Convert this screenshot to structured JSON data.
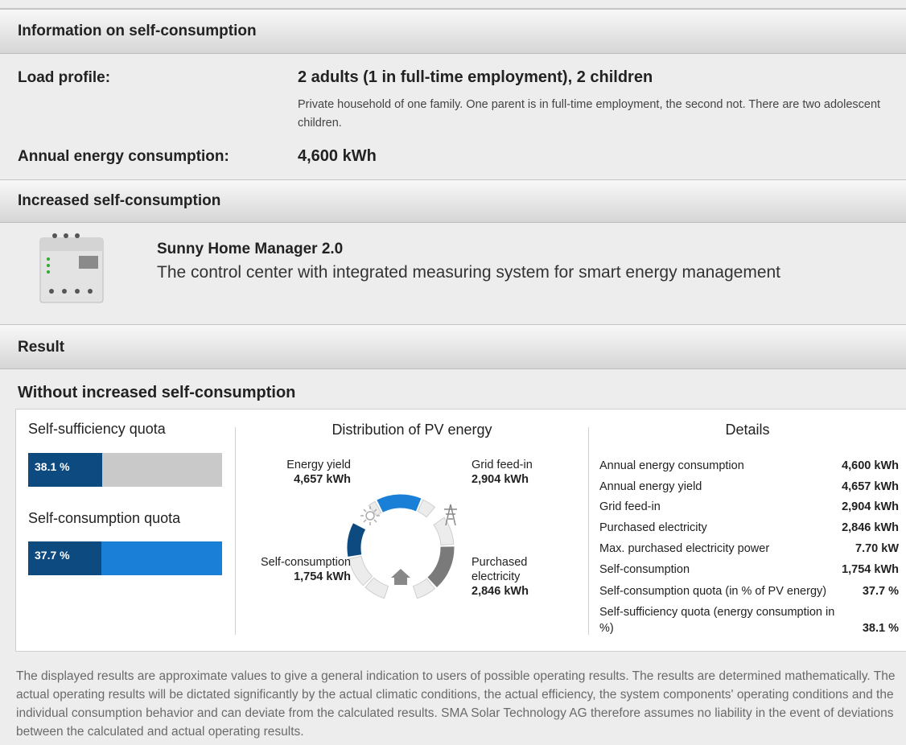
{
  "info": {
    "title": "Information on self-consumption",
    "load_profile_label": "Load profile:",
    "load_profile": "2 adults (1 in full-time employment), 2 children",
    "load_profile_description": "Private household of one family. One parent is in full-time employment, the second not. There are two adolescent children.",
    "consumption_label": "Annual energy consumption:",
    "consumption": "4,600 kWh"
  },
  "increased": {
    "title": "Increased self-consumption",
    "product_name": "Sunny Home Manager 2.0",
    "product_description": "The control center with integrated measuring system for smart energy management"
  },
  "result": {
    "title": "Result",
    "subtitle": "Without increased self-consumption",
    "quotas": [
      {
        "label": "Self-sufficiency quota",
        "value": 38.1,
        "value_label": "38.1 %",
        "color": "#0d4a7f",
        "track_color": "#c9c9c9"
      },
      {
        "label": "Self-consumption quota",
        "value": 37.7,
        "value_label": "37.7 %",
        "color": "#0d4a7f",
        "track_color": "#1a7fd6"
      }
    ],
    "distribution": {
      "title": "Distribution of PV energy",
      "flows": [
        {
          "label": "Energy yield",
          "value": "4,657 kWh"
        },
        {
          "label": "Grid feed-in",
          "value": "2,904 kWh"
        },
        {
          "label": "Self-consumption",
          "value": "1,754 kWh"
        },
        {
          "label": "Purchased electricity",
          "value": "2,846 kWh"
        }
      ]
    },
    "details": {
      "title": "Details",
      "rows": [
        [
          "Annual energy consumption",
          "4,600 kWh"
        ],
        [
          "Annual energy yield",
          "4,657 kWh"
        ],
        [
          "Grid feed-in",
          "2,904 kWh"
        ],
        [
          "Purchased electricity",
          "2,846 kWh"
        ],
        [
          "Max. purchased electricity power",
          "7.70 kW"
        ],
        [
          "Self-consumption",
          "1,754 kWh"
        ],
        [
          "Self-consumption quota (in % of PV energy)",
          "37.7 %"
        ],
        [
          "Self-sufficiency quota (energy consumption in %)",
          "38.1 %"
        ]
      ]
    }
  },
  "disclaimer": "The displayed results are approximate values to give a general indication to users of possible operating results. The results are determined mathematically. The actual operating results will be dictated significantly by the actual climatic conditions, the actual efficiency, the system components' operating conditions and the individual consumption behavior and can deviate from the calculated results. SMA Solar Technology AG therefore assumes no liability in the event of deviations between the calculated and actual operating results."
}
